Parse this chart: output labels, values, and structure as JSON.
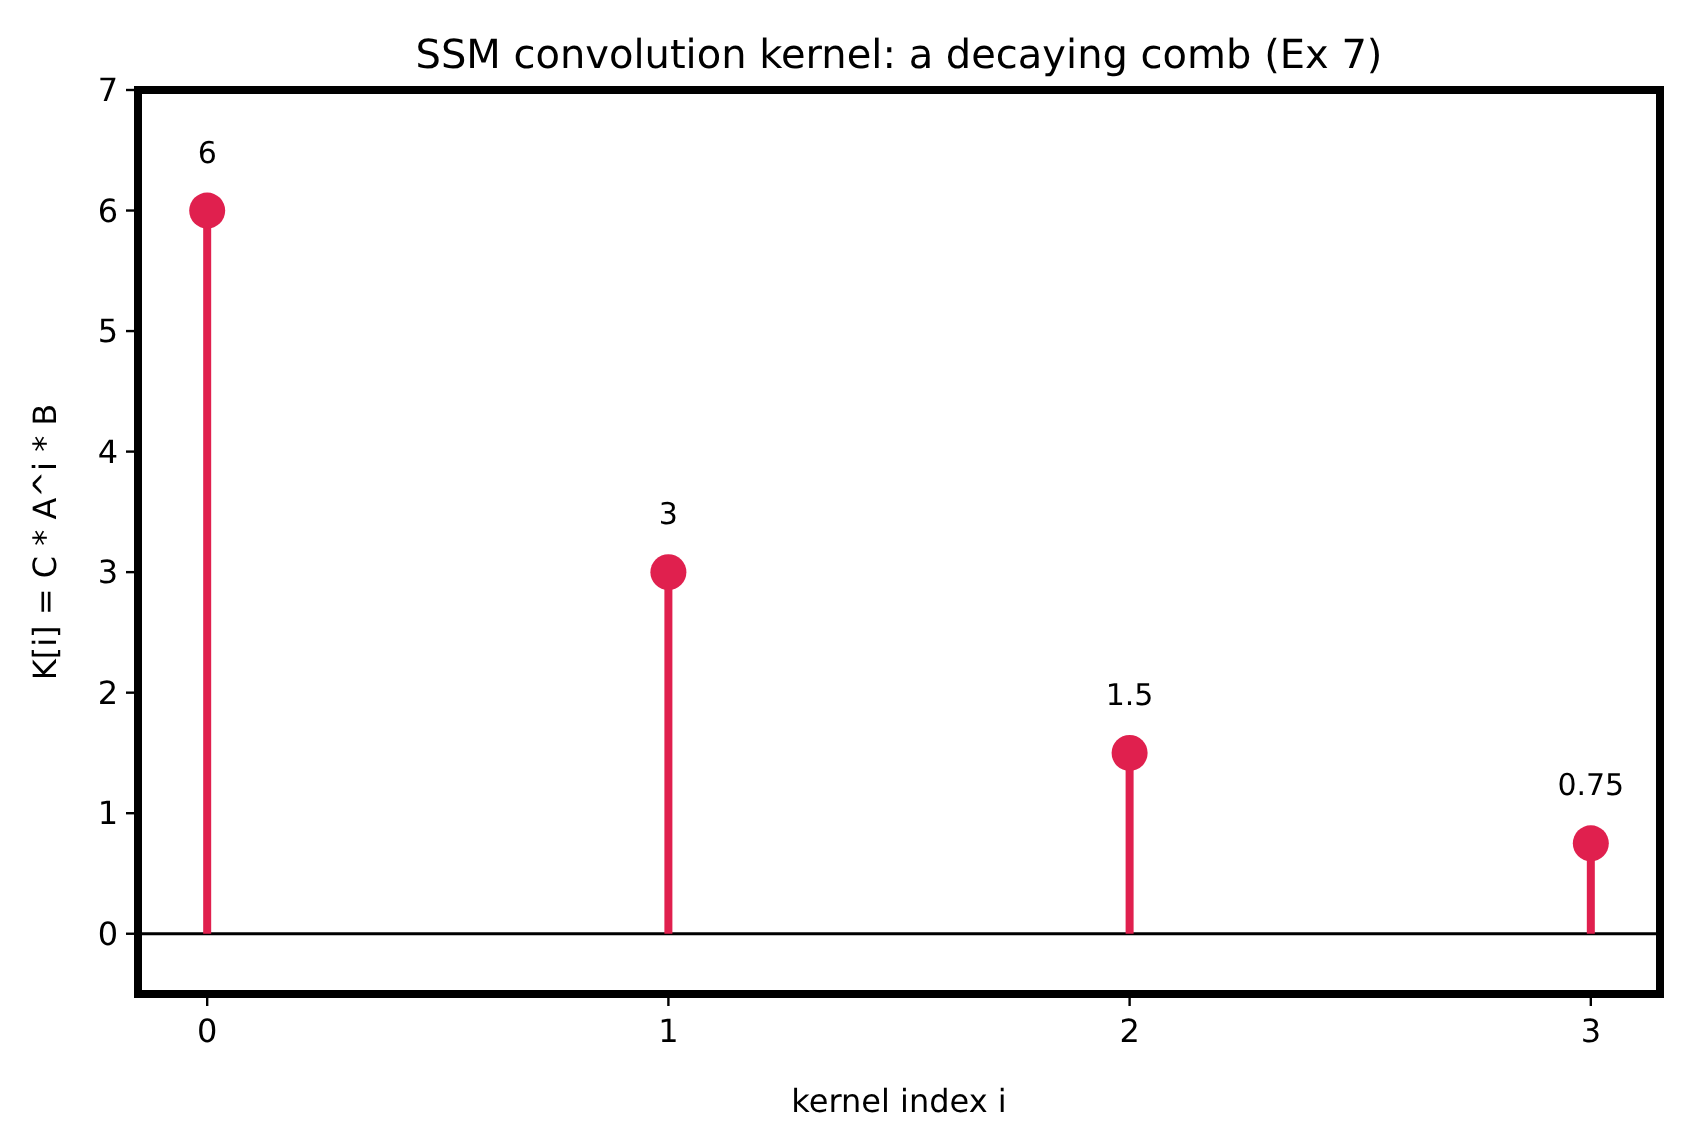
{
  "chart_data": {
    "type": "lollipop",
    "title": "SSM convolution kernel: a decaying comb (Ex 7)",
    "xlabel": "kernel index i",
    "ylabel": "K[i] = C * A^i * B",
    "x": [
      0,
      1,
      2,
      3
    ],
    "values": [
      6,
      3,
      1.5,
      0.75
    ],
    "color": "#e0204e",
    "xlim": [
      -0.15,
      3.15
    ],
    "xticks": [
      0,
      1,
      2,
      3
    ],
    "ylim": [
      -0.5,
      7
    ],
    "yticks": [
      0,
      1,
      2,
      3,
      4,
      5,
      6,
      7
    ],
    "ref_lines": [
      {
        "axis": "y",
        "value": 0,
        "color": "#000000"
      }
    ],
    "data_labels": true,
    "marker": "circle"
  }
}
